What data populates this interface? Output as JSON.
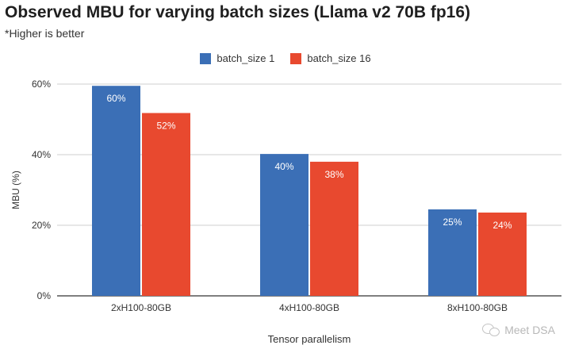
{
  "chart_data": {
    "type": "bar",
    "title": "Observed MBU for varying batch sizes (Llama v2 70B fp16)",
    "subtitle": "*Higher is better",
    "xlabel": "Tensor parallelism",
    "ylabel": "MBU (%)",
    "ylim": [
      0,
      60
    ],
    "yticks": [
      0,
      20,
      40,
      60
    ],
    "ytick_labels": [
      "0%",
      "20%",
      "40%",
      "60%"
    ],
    "grid": true,
    "legend_position": "top-center",
    "categories": [
      "2xH100-80GB",
      "4xH100-80GB",
      "8xH100-80GB"
    ],
    "series": [
      {
        "name": "batch_size 1",
        "color": "#3b6fb6",
        "values": [
          59.5,
          40.2,
          24.5
        ],
        "labels": [
          "60%",
          "40%",
          "25%"
        ]
      },
      {
        "name": "batch_size 16",
        "color": "#e8492f",
        "values": [
          51.8,
          38.0,
          23.6
        ],
        "labels": [
          "52%",
          "38%",
          "24%"
        ]
      }
    ]
  },
  "watermark": {
    "text": "Meet DSA",
    "icon": "wechat-icon"
  }
}
